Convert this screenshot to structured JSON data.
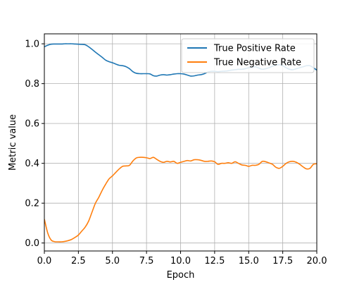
{
  "chart_data": {
    "type": "line",
    "title": "",
    "xlabel": "Epoch",
    "ylabel": "Metric value",
    "xlim": [
      0,
      20
    ],
    "ylim": [
      -0.04,
      1.05
    ],
    "xticks": [
      0,
      2.5,
      5,
      7.5,
      10,
      12.5,
      15,
      17.5,
      20
    ],
    "xtick_labels": [
      "0.0",
      "2.5",
      "5.0",
      "7.5",
      "10.0",
      "12.5",
      "15.0",
      "17.5",
      "20.0"
    ],
    "yticks": [
      0,
      0.2,
      0.4,
      0.6,
      0.8,
      1.0
    ],
    "ytick_labels": [
      "0.0",
      "0.2",
      "0.4",
      "0.6",
      "0.8",
      "1.0"
    ],
    "grid": true,
    "legend_position": "top-right",
    "series": [
      {
        "name": "True Positive Rate",
        "color": "#1f77b4",
        "x": [
          0,
          0.25,
          0.5,
          0.75,
          1,
          1.25,
          1.5,
          1.75,
          2,
          2.25,
          2.5,
          2.75,
          3,
          3.25,
          3.5,
          3.75,
          4,
          4.25,
          4.5,
          4.75,
          5,
          5.25,
          5.5,
          5.75,
          6,
          6.25,
          6.5,
          6.75,
          7,
          7.25,
          7.5,
          7.75,
          8,
          8.25,
          8.5,
          8.75,
          9,
          9.25,
          9.5,
          9.75,
          10,
          10.25,
          10.5,
          10.75,
          11,
          11.25,
          11.5,
          11.75,
          12,
          12.25,
          12.5,
          12.75,
          13,
          13.25,
          13.5,
          13.75,
          14,
          14.25,
          14.5,
          14.75,
          15,
          15.25,
          15.5,
          15.75,
          16,
          16.25,
          16.5,
          16.75,
          17,
          17.25,
          17.5,
          17.75,
          18,
          18.25,
          18.5,
          18.75,
          19,
          19.25,
          19.5,
          19.75,
          20
        ],
        "y": [
          0.985,
          0.993,
          0.998,
          0.999,
          0.999,
          0.999,
          1.0,
          1.0,
          1.0,
          0.999,
          0.998,
          0.997,
          0.995,
          0.985,
          0.972,
          0.958,
          0.945,
          0.932,
          0.918,
          0.91,
          0.905,
          0.898,
          0.892,
          0.89,
          0.885,
          0.875,
          0.86,
          0.852,
          0.85,
          0.85,
          0.85,
          0.849,
          0.84,
          0.838,
          0.843,
          0.845,
          0.843,
          0.845,
          0.848,
          0.85,
          0.85,
          0.848,
          0.843,
          0.838,
          0.839,
          0.843,
          0.845,
          0.85,
          0.858,
          0.862,
          0.862,
          0.86,
          0.862,
          0.863,
          0.865,
          0.868,
          0.87,
          0.872,
          0.872,
          0.875,
          0.88,
          0.882,
          0.885,
          0.878,
          0.872,
          0.875,
          0.88,
          0.888,
          0.893,
          0.895,
          0.89,
          0.88,
          0.872,
          0.87,
          0.875,
          0.88,
          0.885,
          0.89,
          0.89,
          0.88,
          0.868
        ]
      },
      {
        "name": "True Negative Rate",
        "color": "#ff7f0e",
        "x": [
          0,
          0.25,
          0.5,
          0.75,
          1,
          1.25,
          1.5,
          1.75,
          2,
          2.25,
          2.5,
          2.75,
          3,
          3.25,
          3.5,
          3.75,
          4,
          4.25,
          4.5,
          4.75,
          5,
          5.25,
          5.5,
          5.75,
          6,
          6.25,
          6.5,
          6.75,
          7,
          7.25,
          7.5,
          7.75,
          8,
          8.25,
          8.5,
          8.75,
          9,
          9.25,
          9.5,
          9.75,
          10,
          10.25,
          10.5,
          10.75,
          11,
          11.25,
          11.5,
          11.75,
          12,
          12.25,
          12.5,
          12.75,
          13,
          13.25,
          13.5,
          13.75,
          14,
          14.25,
          14.5,
          14.75,
          15,
          15.25,
          15.5,
          15.75,
          16,
          16.25,
          16.5,
          16.75,
          17,
          17.25,
          17.5,
          17.75,
          18,
          18.25,
          18.5,
          18.75,
          19,
          19.25,
          19.5,
          19.75,
          20
        ],
        "y": [
          0.12,
          0.05,
          0.015,
          0.007,
          0.006,
          0.006,
          0.008,
          0.012,
          0.018,
          0.028,
          0.04,
          0.06,
          0.08,
          0.11,
          0.155,
          0.2,
          0.23,
          0.265,
          0.295,
          0.322,
          0.337,
          0.355,
          0.372,
          0.385,
          0.387,
          0.39,
          0.412,
          0.427,
          0.43,
          0.43,
          0.428,
          0.424,
          0.43,
          0.42,
          0.41,
          0.405,
          0.41,
          0.407,
          0.41,
          0.4,
          0.405,
          0.41,
          0.414,
          0.412,
          0.418,
          0.418,
          0.415,
          0.41,
          0.41,
          0.412,
          0.408,
          0.395,
          0.4,
          0.4,
          0.403,
          0.4,
          0.408,
          0.4,
          0.392,
          0.39,
          0.385,
          0.39,
          0.39,
          0.395,
          0.41,
          0.408,
          0.402,
          0.395,
          0.38,
          0.375,
          0.385,
          0.4,
          0.408,
          0.41,
          0.405,
          0.395,
          0.382,
          0.372,
          0.375,
          0.395,
          0.398
        ]
      }
    ]
  }
}
